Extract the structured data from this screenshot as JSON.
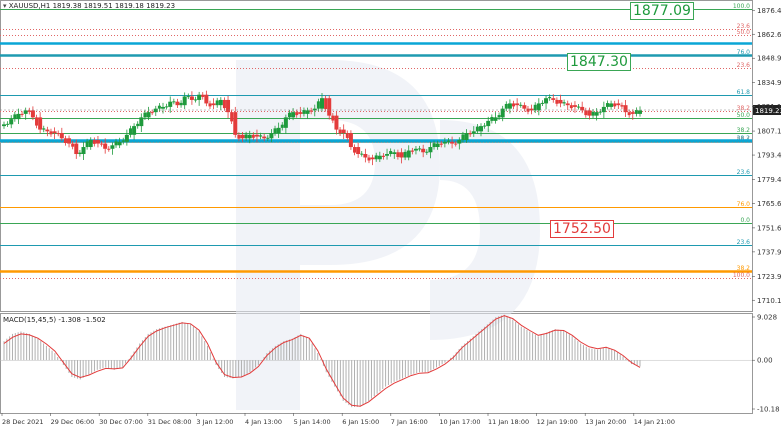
{
  "header": {
    "symbol_line": "XAUUSD,H1  1819.38 1819.51 1819.18 1819.23"
  },
  "macd_header": "MACD(15,45,5) -1.308 -1.502",
  "price_axis": {
    "ticks": [
      "1876.40",
      "1862.65",
      "1848.90",
      "1834.90",
      "1821.15",
      "1807.15",
      "1793.40",
      "1779.40",
      "1765.65",
      "1751.65",
      "1737.90",
      "1723.90",
      "1710.15"
    ],
    "current_price": "1819.23"
  },
  "macd_axis": {
    "ticks": [
      "9.028",
      "0.00",
      "-10.18"
    ]
  },
  "time_axis": {
    "ticks": [
      "28 Dec 2021",
      "29 Dec 06:00",
      "30 Dec 07:00",
      "31 Dec 08:00",
      "3 Jan 12:00",
      "4 Jan 13:00",
      "5 Jan 14:00",
      "6 Jan 15:00",
      "7 Jan 16:00",
      "10 Jan 17:00",
      "11 Jan 18:00",
      "12 Jan 19:00",
      "13 Jan 20:00",
      "14 Jan 21:00"
    ]
  },
  "targets": [
    {
      "label": "1877.09",
      "color": "green"
    },
    {
      "label": "1847.30",
      "color": "green"
    },
    {
      "label": "1752.50",
      "color": "red"
    }
  ],
  "fib_levels": [
    {
      "label": "100.0",
      "price": 1877.1,
      "color": "#3aa655"
    },
    {
      "label": "23.6",
      "price": 1865.4,
      "color": "#e06666"
    },
    {
      "label": "50.0",
      "price": 1862.4,
      "color": "#e06666"
    },
    {
      "label": "76.0",
      "price": 1850.5,
      "color": "#1e9ab0"
    },
    {
      "label": "23.6",
      "price": 1843.5,
      "color": "#e06666"
    },
    {
      "label": "61.8",
      "price": 1828.1,
      "color": "#1e9ab0"
    },
    {
      "label": "38.2",
      "price": 1818.4,
      "color": "#e06666"
    },
    {
      "label": "50.0",
      "price": 1814.8,
      "color": "#3aa655"
    },
    {
      "label": "38.2",
      "price": 1805.9,
      "color": "#3aa655"
    },
    {
      "label": "38.2",
      "price": 1801.3,
      "color": "#1e9ab0"
    },
    {
      "label": "88.4",
      "price": 1800.9,
      "color": "#999999"
    },
    {
      "label": "23.6",
      "price": 1781.8,
      "color": "#1e9ab0"
    },
    {
      "label": "76.0",
      "price": 1763.6,
      "color": "#ff9900"
    },
    {
      "label": "0.0",
      "price": 1754.7,
      "color": "#3aa655"
    },
    {
      "label": "23.6",
      "price": 1741.7,
      "color": "#1e9ab0"
    },
    {
      "label": "38.2",
      "price": 1727.1,
      "color": "#ff9900"
    },
    {
      "label": "100.0",
      "price": 1722.9,
      "color": "#e06666"
    }
  ],
  "chart_data": [
    {
      "type": "candlestick",
      "symbol": "XAUUSD",
      "timeframe": "H1",
      "ylim": [
        1704,
        1880
      ],
      "colors": {
        "up": "#1e9a3c",
        "down": "#e33b3b"
      },
      "x_tick_labels": [
        "28 Dec 2021",
        "29 Dec 06:00",
        "30 Dec 07:00",
        "31 Dec 08:00",
        "3 Jan 12:00",
        "4 Jan 13:00",
        "5 Jan 14:00",
        "6 Jan 15:00",
        "7 Jan 16:00",
        "10 Jan 17:00",
        "11 Jan 18:00",
        "12 Jan 19:00",
        "13 Jan 20:00",
        "14 Jan 21:00"
      ],
      "close_path": [
        1811,
        1814,
        1817,
        1819,
        1815,
        1808,
        1807,
        1806,
        1803,
        1800,
        1794,
        1798,
        1802,
        1800,
        1797,
        1799,
        1801,
        1805,
        1810,
        1815,
        1818,
        1820,
        1821,
        1824,
        1822,
        1827,
        1825,
        1828,
        1823,
        1822,
        1825,
        1818,
        1805,
        1803,
        1805,
        1804,
        1803,
        1806,
        1809,
        1815,
        1818,
        1817,
        1819,
        1820,
        1826,
        1816,
        1808,
        1806,
        1798,
        1794,
        1792,
        1791,
        1793,
        1794,
        1795,
        1792,
        1796,
        1797,
        1795,
        1798,
        1800,
        1801,
        1800,
        1802,
        1806,
        1807,
        1810,
        1813,
        1815,
        1820,
        1823,
        1822,
        1820,
        1819,
        1823,
        1826,
        1825,
        1823,
        1822,
        1821,
        1819,
        1816,
        1818,
        1821,
        1823,
        1822,
        1818,
        1817,
        1819
      ]
    },
    {
      "type": "bar",
      "name": "MACD(15,45,5)",
      "ylim": [
        -10.18,
        9.028
      ],
      "macd_path": [
        4,
        5.5,
        6,
        5.5,
        4.5,
        3,
        1.5,
        -1,
        -3.5,
        -4,
        -3,
        -2,
        -1.5,
        -2,
        -1.5,
        1,
        3.5,
        5.5,
        6.5,
        7,
        7.5,
        8,
        7.5,
        6,
        3,
        -1,
        -3.5,
        -3.8,
        -3.5,
        -2.5,
        -1,
        1.5,
        3,
        4,
        4.5,
        5.5,
        4.5,
        1.5,
        -2.5,
        -5.5,
        -8.5,
        -9.8,
        -9.7,
        -8.5,
        -7,
        -5.5,
        -4.5,
        -3.8,
        -3,
        -2.5,
        -2.5,
        -1.5,
        -0.5,
        1,
        3,
        4.5,
        6,
        7.5,
        9,
        9.5,
        8.5,
        7,
        6,
        5,
        5.8,
        6.5,
        6.2,
        5,
        3.5,
        2.5,
        2.2,
        2.8,
        2,
        0.8,
        -0.8,
        -1.3
      ],
      "signal_path": [
        3.5,
        4.8,
        5.5,
        5.3,
        4.6,
        3.4,
        1.9,
        -0.5,
        -2.8,
        -3.6,
        -3.1,
        -2.3,
        -1.7,
        -1.8,
        -1.6,
        0.5,
        2.9,
        5,
        6.1,
        6.8,
        7.3,
        7.8,
        7.6,
        6.3,
        3.5,
        -0.4,
        -3,
        -3.6,
        -3.5,
        -2.7,
        -1.3,
        1,
        2.6,
        3.7,
        4.3,
        5.2,
        4.6,
        2,
        -1.8,
        -4.9,
        -7.9,
        -9.4,
        -9.6,
        -8.7,
        -7.3,
        -5.9,
        -4.8,
        -4,
        -3.2,
        -2.7,
        -2.6,
        -1.8,
        -0.8,
        0.6,
        2.6,
        4.1,
        5.6,
        7.1,
        8.6,
        9.3,
        8.7,
        7.3,
        6.2,
        5.2,
        5.6,
        6.3,
        6.2,
        5.2,
        3.8,
        2.8,
        2.4,
        2.7,
        2.1,
        1,
        -0.5,
        -1.5
      ]
    }
  ]
}
